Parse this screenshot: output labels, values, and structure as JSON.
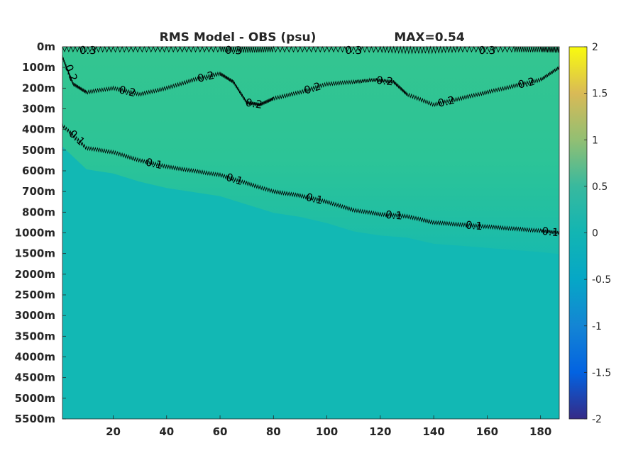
{
  "chart_data": {
    "type": "heatmap",
    "title": "RMS Model - OBS (psu)",
    "max_text": "MAX=0.54",
    "x_ticks": [
      20,
      40,
      60,
      80,
      100,
      120,
      140,
      160,
      180
    ],
    "xlim": [
      1,
      187
    ],
    "y_tick_labels": [
      "0m",
      "100m",
      "200m",
      "300m",
      "400m",
      "500m",
      "600m",
      "700m",
      "800m",
      "1000m",
      "1500m",
      "2000m",
      "2500m",
      "3000m",
      "3500m",
      "4000m",
      "4500m",
      "5000m",
      "5500m"
    ],
    "colorbar": {
      "ticks": [
        2,
        1.5,
        1,
        0.5,
        0,
        -0.5,
        -1,
        -1.5,
        -2
      ],
      "clim": [
        -2,
        2
      ],
      "colormap": "parula"
    },
    "contours": [
      {
        "level": 0.3,
        "label": "0.3",
        "points": [
          [
            1,
            0.03
          ],
          [
            20,
            0.05
          ],
          [
            40,
            0.04
          ],
          [
            60,
            0.04
          ],
          [
            70,
            0.08
          ],
          [
            80,
            0.05
          ],
          [
            100,
            0.04
          ],
          [
            120,
            0.06
          ],
          [
            135,
            0.12
          ],
          [
            150,
            0.04
          ],
          [
            170,
            0.05
          ],
          [
            180,
            0.05
          ],
          [
            187,
            0.08
          ]
        ]
      },
      {
        "level": 0.2,
        "label": "0.2",
        "points": [
          [
            1,
            0.5
          ],
          [
            5,
            1.8
          ],
          [
            10,
            2.2
          ],
          [
            20,
            2.0
          ],
          [
            30,
            2.3
          ],
          [
            40,
            2.0
          ],
          [
            50,
            1.6
          ],
          [
            60,
            1.3
          ],
          [
            65,
            1.7
          ],
          [
            70,
            2.7
          ],
          [
            75,
            2.8
          ],
          [
            80,
            2.5
          ],
          [
            90,
            2.2
          ],
          [
            100,
            1.8
          ],
          [
            110,
            1.7
          ],
          [
            118,
            1.6
          ],
          [
            125,
            1.7
          ],
          [
            130,
            2.3
          ],
          [
            140,
            2.8
          ],
          [
            150,
            2.5
          ],
          [
            160,
            2.2
          ],
          [
            170,
            1.9
          ],
          [
            180,
            1.6
          ],
          [
            187,
            1.0
          ]
        ]
      },
      {
        "level": 0.1,
        "label": "0.1",
        "points": [
          [
            1,
            3.8
          ],
          [
            10,
            4.9
          ],
          [
            20,
            5.1
          ],
          [
            30,
            5.5
          ],
          [
            40,
            5.8
          ],
          [
            50,
            6.0
          ],
          [
            60,
            6.2
          ],
          [
            70,
            6.6
          ],
          [
            80,
            7.0
          ],
          [
            90,
            7.2
          ],
          [
            100,
            7.5
          ],
          [
            110,
            7.9
          ],
          [
            120,
            8.1
          ],
          [
            130,
            8.2
          ],
          [
            140,
            8.5
          ],
          [
            150,
            8.6
          ],
          [
            160,
            8.7
          ],
          [
            170,
            8.8
          ],
          [
            180,
            8.9
          ],
          [
            187,
            9.0
          ]
        ]
      }
    ],
    "field_description": "near-zero RMS difference at depth; positive band (~0.1-0.54) in upper ocean",
    "colors": {
      "deep": "#11b7b7",
      "mid": "#1fbda5",
      "upper": "#2cc497",
      "surface": "#34c590",
      "contour": "#000000"
    }
  }
}
